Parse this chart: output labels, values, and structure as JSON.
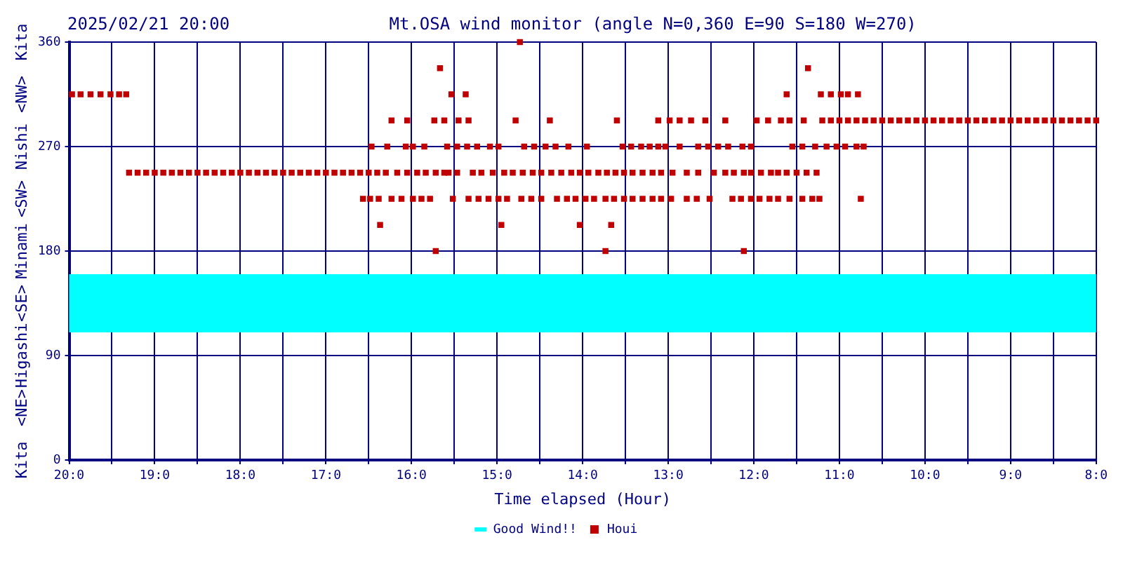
{
  "chart_data": {
    "type": "scatter",
    "title": "Mt.OSA wind monitor (angle N=0,360 E=90 S=180 W=270)",
    "subtitle": "2025/02/21 20:00",
    "xlabel": "Time elapsed (Hour)",
    "xlim": [
      "2025-02-21T20:00",
      "2025-02-21T08:00"
    ],
    "xticks": [
      {
        "value": "2025-02-21T20:00",
        "label": "20:0"
      },
      {
        "value": "2025-02-21T19:30",
        "label": null
      },
      {
        "value": "2025-02-21T19:00",
        "label": "19:0"
      },
      {
        "value": "2025-02-21T18:30",
        "label": null
      },
      {
        "value": "2025-02-21T18:00",
        "label": "18:0"
      },
      {
        "value": "2025-02-21T17:30",
        "label": null
      },
      {
        "value": "2025-02-21T17:00",
        "label": "17:0"
      },
      {
        "value": "2025-02-21T16:30",
        "label": null
      },
      {
        "value": "2025-02-21T16:00",
        "label": "16:0"
      },
      {
        "value": "2025-02-21T15:30",
        "label": null
      },
      {
        "value": "2025-02-21T15:00",
        "label": "15:0"
      },
      {
        "value": "2025-02-21T14:30",
        "label": null
      },
      {
        "value": "2025-02-21T14:00",
        "label": "14:0"
      },
      {
        "value": "2025-02-21T13:30",
        "label": null
      },
      {
        "value": "2025-02-21T13:00",
        "label": "13:0"
      },
      {
        "value": "2025-02-21T12:30",
        "label": null
      },
      {
        "value": "2025-02-21T12:00",
        "label": "12:0"
      },
      {
        "value": "2025-02-21T11:30",
        "label": null
      },
      {
        "value": "2025-02-21T11:00",
        "label": "11:0"
      },
      {
        "value": "2025-02-21T10:30",
        "label": null
      },
      {
        "value": "2025-02-21T10:00",
        "label": "10:0"
      },
      {
        "value": "2025-02-21T09:30",
        "label": null
      },
      {
        "value": "2025-02-21T09:00",
        "label": "9:0"
      },
      {
        "value": "2025-02-21T08:30",
        "label": null
      },
      {
        "value": "2025-02-21T08:00",
        "label": "8:0"
      }
    ],
    "ylim": [
      0,
      360
    ],
    "yticks": [
      0,
      90,
      180,
      270,
      360
    ],
    "annotations": [
      "Kita",
      "<NE>",
      "Higashi",
      "<SE>",
      "Minami",
      "<SW>",
      "Nishi",
      "<NW>",
      "Kita"
    ],
    "bands": [
      {
        "axis": "y",
        "from": 110,
        "to": 160,
        "label": "Good Wind!!",
        "color": "#00ffff"
      }
    ],
    "grid": true,
    "legend": "bottom",
    "marker": "square",
    "series": [
      {
        "name": "Houi",
        "color": "#c00000",
        "x": [
          "2025-02-21T19:58",
          "2025-02-21T19:52",
          "2025-02-21T19:45",
          "2025-02-21T19:38",
          "2025-02-21T19:31",
          "2025-02-21T19:25",
          "2025-02-21T19:20",
          "2025-02-21T19:18",
          "2025-02-21T19:12",
          "2025-02-21T19:06",
          "2025-02-21T19:00",
          "2025-02-21T18:54",
          "2025-02-21T18:48",
          "2025-02-21T18:42",
          "2025-02-21T18:36",
          "2025-02-21T18:30",
          "2025-02-21T18:24",
          "2025-02-21T18:18",
          "2025-02-21T18:12",
          "2025-02-21T18:06",
          "2025-02-21T18:00",
          "2025-02-21T17:54",
          "2025-02-21T17:48",
          "2025-02-21T17:42",
          "2025-02-21T17:36",
          "2025-02-21T17:30",
          "2025-02-21T17:24",
          "2025-02-21T17:18",
          "2025-02-21T17:12",
          "2025-02-21T17:06",
          "2025-02-21T17:00",
          "2025-02-21T16:54",
          "2025-02-21T16:48",
          "2025-02-21T16:42",
          "2025-02-21T16:36",
          "2025-02-21T16:30",
          "2025-02-21T16:24",
          "2025-02-21T16:18",
          "2025-02-21T16:10",
          "2025-02-21T16:03",
          "2025-02-21T15:56",
          "2025-02-21T15:50",
          "2025-02-21T15:43",
          "2025-02-21T15:37",
          "2025-02-21T15:34",
          "2025-02-21T15:28",
          "2025-02-21T15:17",
          "2025-02-21T15:11",
          "2025-02-21T15:03",
          "2025-02-21T14:55",
          "2025-02-21T14:49",
          "2025-02-21T14:42",
          "2025-02-21T14:35",
          "2025-02-21T14:29",
          "2025-02-21T14:22",
          "2025-02-21T14:15",
          "2025-02-21T14:08",
          "2025-02-21T14:02",
          "2025-02-21T13:56",
          "2025-02-21T13:49",
          "2025-02-21T13:43",
          "2025-02-21T13:37",
          "2025-02-21T13:31",
          "2025-02-21T13:25",
          "2025-02-21T13:18",
          "2025-02-21T13:11",
          "2025-02-21T13:05",
          "2025-02-21T12:57",
          "2025-02-21T12:47",
          "2025-02-21T12:39",
          "2025-02-21T12:28",
          "2025-02-21T12:20",
          "2025-02-21T12:14",
          "2025-02-21T12:07",
          "2025-02-21T12:02",
          "2025-02-21T11:55",
          "2025-02-21T11:48",
          "2025-02-21T11:43",
          "2025-02-21T11:37",
          "2025-02-21T11:30",
          "2025-02-21T11:23",
          "2025-02-21T11:16",
          "2025-02-21T16:34",
          "2025-02-21T16:29",
          "2025-02-21T16:23",
          "2025-02-21T16:14",
          "2025-02-21T16:07",
          "2025-02-21T15:59",
          "2025-02-21T15:53",
          "2025-02-21T15:47",
          "2025-02-21T15:31",
          "2025-02-21T15:20",
          "2025-02-21T15:13",
          "2025-02-21T15:06",
          "2025-02-21T14:59",
          "2025-02-21T14:53",
          "2025-02-21T14:43",
          "2025-02-21T14:36",
          "2025-02-21T14:29",
          "2025-02-21T14:18",
          "2025-02-21T14:11",
          "2025-02-21T14:05",
          "2025-02-21T13:58",
          "2025-02-21T13:52",
          "2025-02-21T13:44",
          "2025-02-21T13:38",
          "2025-02-21T13:31",
          "2025-02-21T13:25",
          "2025-02-21T13:18",
          "2025-02-21T13:11",
          "2025-02-21T13:05",
          "2025-02-21T12:58",
          "2025-02-21T12:47",
          "2025-02-21T12:40",
          "2025-02-21T12:31",
          "2025-02-21T12:15",
          "2025-02-21T12:09",
          "2025-02-21T12:02",
          "2025-02-21T11:56",
          "2025-02-21T11:49",
          "2025-02-21T11:43",
          "2025-02-21T11:35",
          "2025-02-21T11:26",
          "2025-02-21T11:19",
          "2025-02-21T11:14",
          "2025-02-21T10:45",
          "2025-02-21T16:28",
          "2025-02-21T16:17",
          "2025-02-21T16:04",
          "2025-02-21T15:59",
          "2025-02-21T15:51",
          "2025-02-21T15:35",
          "2025-02-21T15:28",
          "2025-02-21T15:21",
          "2025-02-21T15:14",
          "2025-02-21T15:05",
          "2025-02-21T14:59",
          "2025-02-21T14:41",
          "2025-02-21T14:34",
          "2025-02-21T14:26",
          "2025-02-21T14:19",
          "2025-02-21T14:10",
          "2025-02-21T13:57",
          "2025-02-21T13:32",
          "2025-02-21T13:26",
          "2025-02-21T13:19",
          "2025-02-21T13:13",
          "2025-02-21T13:07",
          "2025-02-21T13:02",
          "2025-02-21T12:52",
          "2025-02-21T12:39",
          "2025-02-21T12:32",
          "2025-02-21T12:25",
          "2025-02-21T12:18",
          "2025-02-21T12:08",
          "2025-02-21T12:02",
          "2025-02-21T11:33",
          "2025-02-21T11:26",
          "2025-02-21T11:17",
          "2025-02-21T11:09",
          "2025-02-21T11:02",
          "2025-02-21T10:56",
          "2025-02-21T10:48",
          "2025-02-21T10:43",
          "2025-02-21T16:14",
          "2025-02-21T16:03",
          "2025-02-21T15:44",
          "2025-02-21T15:37",
          "2025-02-21T15:27",
          "2025-02-21T15:20",
          "2025-02-21T14:47",
          "2025-02-21T14:23",
          "2025-02-21T13:36",
          "2025-02-21T13:07",
          "2025-02-21T12:59",
          "2025-02-21T12:52",
          "2025-02-21T12:44",
          "2025-02-21T12:34",
          "2025-02-21T12:20",
          "2025-02-21T11:58",
          "2025-02-21T11:50",
          "2025-02-21T11:41",
          "2025-02-21T11:35",
          "2025-02-21T11:25",
          "2025-02-21T11:12",
          "2025-02-21T11:06",
          "2025-02-21T11:00",
          "2025-02-21T10:54",
          "2025-02-21T10:48",
          "2025-02-21T10:42",
          "2025-02-21T10:36",
          "2025-02-21T10:30",
          "2025-02-21T10:24",
          "2025-02-21T10:18",
          "2025-02-21T10:12",
          "2025-02-21T10:06",
          "2025-02-21T10:00",
          "2025-02-21T09:54",
          "2025-02-21T09:48",
          "2025-02-21T09:42",
          "2025-02-21T09:36",
          "2025-02-21T09:30",
          "2025-02-21T09:24",
          "2025-02-21T09:18",
          "2025-02-21T09:12",
          "2025-02-21T09:06",
          "2025-02-21T09:00",
          "2025-02-21T08:54",
          "2025-02-21T08:48",
          "2025-02-21T08:42",
          "2025-02-21T08:36",
          "2025-02-21T08:30",
          "2025-02-21T08:24",
          "2025-02-21T08:18",
          "2025-02-21T08:12",
          "2025-02-21T08:06",
          "2025-02-21T08:00",
          "2025-02-21T15:32",
          "2025-02-21T15:22",
          "2025-02-21T11:37",
          "2025-02-21T11:13",
          "2025-02-21T11:06",
          "2025-02-21T10:59",
          "2025-02-21T10:54",
          "2025-02-21T10:47",
          "2025-02-21T15:40",
          "2025-02-21T11:22",
          "2025-02-21T14:44",
          "2025-02-21T16:22",
          "2025-02-21T14:57",
          "2025-02-21T14:02",
          "2025-02-21T13:40",
          "2025-02-21T15:43",
          "2025-02-21T13:44",
          "2025-02-21T12:07"
        ],
        "values": [
          315,
          315,
          315,
          315,
          315,
          315,
          315,
          247.5,
          247.5,
          247.5,
          247.5,
          247.5,
          247.5,
          247.5,
          247.5,
          247.5,
          247.5,
          247.5,
          247.5,
          247.5,
          247.5,
          247.5,
          247.5,
          247.5,
          247.5,
          247.5,
          247.5,
          247.5,
          247.5,
          247.5,
          247.5,
          247.5,
          247.5,
          247.5,
          247.5,
          247.5,
          247.5,
          247.5,
          247.5,
          247.5,
          247.5,
          247.5,
          247.5,
          247.5,
          247.5,
          247.5,
          247.5,
          247.5,
          247.5,
          247.5,
          247.5,
          247.5,
          247.5,
          247.5,
          247.5,
          247.5,
          247.5,
          247.5,
          247.5,
          247.5,
          247.5,
          247.5,
          247.5,
          247.5,
          247.5,
          247.5,
          247.5,
          247.5,
          247.5,
          247.5,
          247.5,
          247.5,
          247.5,
          247.5,
          247.5,
          247.5,
          247.5,
          247.5,
          247.5,
          247.5,
          247.5,
          247.5,
          225,
          225,
          225,
          225,
          225,
          225,
          225,
          225,
          225,
          225,
          225,
          225,
          225,
          225,
          225,
          225,
          225,
          225,
          225,
          225,
          225,
          225,
          225,
          225,
          225,
          225,
          225,
          225,
          225,
          225,
          225,
          225,
          225,
          225,
          225,
          225,
          225,
          225,
          225,
          225,
          225,
          225,
          225,
          225,
          270,
          270,
          270,
          270,
          270,
          270,
          270,
          270,
          270,
          270,
          270,
          270,
          270,
          270,
          270,
          270,
          270,
          270,
          270,
          270,
          270,
          270,
          270,
          270,
          270,
          270,
          270,
          270,
          270,
          270,
          270,
          270,
          270,
          270,
          270,
          270,
          270,
          270,
          292.5,
          292.5,
          292.5,
          292.5,
          292.5,
          292.5,
          292.5,
          292.5,
          292.5,
          292.5,
          292.5,
          292.5,
          292.5,
          292.5,
          292.5,
          292.5,
          292.5,
          292.5,
          292.5,
          292.5,
          292.5,
          292.5,
          292.5,
          292.5,
          292.5,
          292.5,
          292.5,
          292.5,
          292.5,
          292.5,
          292.5,
          292.5,
          292.5,
          292.5,
          292.5,
          292.5,
          292.5,
          292.5,
          292.5,
          292.5,
          292.5,
          292.5,
          292.5,
          292.5,
          292.5,
          292.5,
          292.5,
          292.5,
          292.5,
          292.5,
          292.5,
          292.5,
          292.5,
          315,
          315,
          315,
          315,
          315,
          315,
          315,
          315,
          337.5,
          337.5,
          360,
          202.5,
          202.5,
          202.5,
          202.5,
          180,
          180,
          180
        ]
      }
    ]
  }
}
